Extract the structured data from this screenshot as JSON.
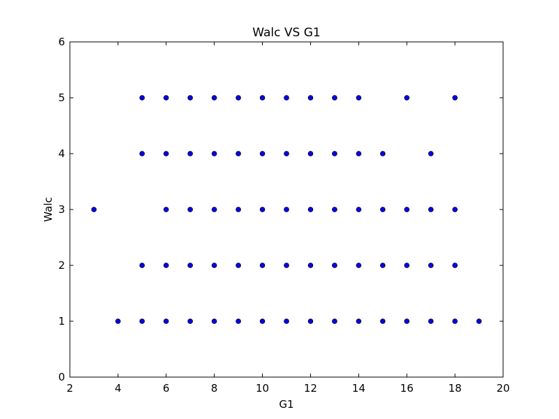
{
  "chart_data": {
    "type": "scatter",
    "title": "Walc VS G1",
    "xlabel": "G1",
    "ylabel": "Walc",
    "xlim": [
      2,
      20
    ],
    "ylim": [
      0,
      6
    ],
    "xticks": [
      "2",
      "4",
      "6",
      "8",
      "10",
      "12",
      "14",
      "16",
      "18",
      "20"
    ],
    "yticks": [
      "0",
      "1",
      "2",
      "3",
      "4",
      "5",
      "6"
    ],
    "grid": false,
    "marker_color": "#0000ff",
    "marker_edge_color": "#000000",
    "points": [
      {
        "x": 5,
        "y": 5
      },
      {
        "x": 6,
        "y": 5
      },
      {
        "x": 7,
        "y": 5
      },
      {
        "x": 8,
        "y": 5
      },
      {
        "x": 9,
        "y": 5
      },
      {
        "x": 10,
        "y": 5
      },
      {
        "x": 11,
        "y": 5
      },
      {
        "x": 12,
        "y": 5
      },
      {
        "x": 13,
        "y": 5
      },
      {
        "x": 14,
        "y": 5
      },
      {
        "x": 16,
        "y": 5
      },
      {
        "x": 18,
        "y": 5
      },
      {
        "x": 5,
        "y": 4
      },
      {
        "x": 6,
        "y": 4
      },
      {
        "x": 7,
        "y": 4
      },
      {
        "x": 8,
        "y": 4
      },
      {
        "x": 9,
        "y": 4
      },
      {
        "x": 10,
        "y": 4
      },
      {
        "x": 11,
        "y": 4
      },
      {
        "x": 12,
        "y": 4
      },
      {
        "x": 13,
        "y": 4
      },
      {
        "x": 14,
        "y": 4
      },
      {
        "x": 15,
        "y": 4
      },
      {
        "x": 17,
        "y": 4
      },
      {
        "x": 3,
        "y": 3
      },
      {
        "x": 6,
        "y": 3
      },
      {
        "x": 7,
        "y": 3
      },
      {
        "x": 8,
        "y": 3
      },
      {
        "x": 9,
        "y": 3
      },
      {
        "x": 10,
        "y": 3
      },
      {
        "x": 11,
        "y": 3
      },
      {
        "x": 12,
        "y": 3
      },
      {
        "x": 13,
        "y": 3
      },
      {
        "x": 14,
        "y": 3
      },
      {
        "x": 15,
        "y": 3
      },
      {
        "x": 16,
        "y": 3
      },
      {
        "x": 17,
        "y": 3
      },
      {
        "x": 18,
        "y": 3
      },
      {
        "x": 5,
        "y": 2
      },
      {
        "x": 6,
        "y": 2
      },
      {
        "x": 7,
        "y": 2
      },
      {
        "x": 8,
        "y": 2
      },
      {
        "x": 9,
        "y": 2
      },
      {
        "x": 10,
        "y": 2
      },
      {
        "x": 11,
        "y": 2
      },
      {
        "x": 12,
        "y": 2
      },
      {
        "x": 13,
        "y": 2
      },
      {
        "x": 14,
        "y": 2
      },
      {
        "x": 15,
        "y": 2
      },
      {
        "x": 16,
        "y": 2
      },
      {
        "x": 17,
        "y": 2
      },
      {
        "x": 18,
        "y": 2
      },
      {
        "x": 4,
        "y": 1
      },
      {
        "x": 5,
        "y": 1
      },
      {
        "x": 6,
        "y": 1
      },
      {
        "x": 7,
        "y": 1
      },
      {
        "x": 8,
        "y": 1
      },
      {
        "x": 9,
        "y": 1
      },
      {
        "x": 10,
        "y": 1
      },
      {
        "x": 11,
        "y": 1
      },
      {
        "x": 12,
        "y": 1
      },
      {
        "x": 13,
        "y": 1
      },
      {
        "x": 14,
        "y": 1
      },
      {
        "x": 15,
        "y": 1
      },
      {
        "x": 16,
        "y": 1
      },
      {
        "x": 17,
        "y": 1
      },
      {
        "x": 18,
        "y": 1
      },
      {
        "x": 19,
        "y": 1
      }
    ]
  }
}
